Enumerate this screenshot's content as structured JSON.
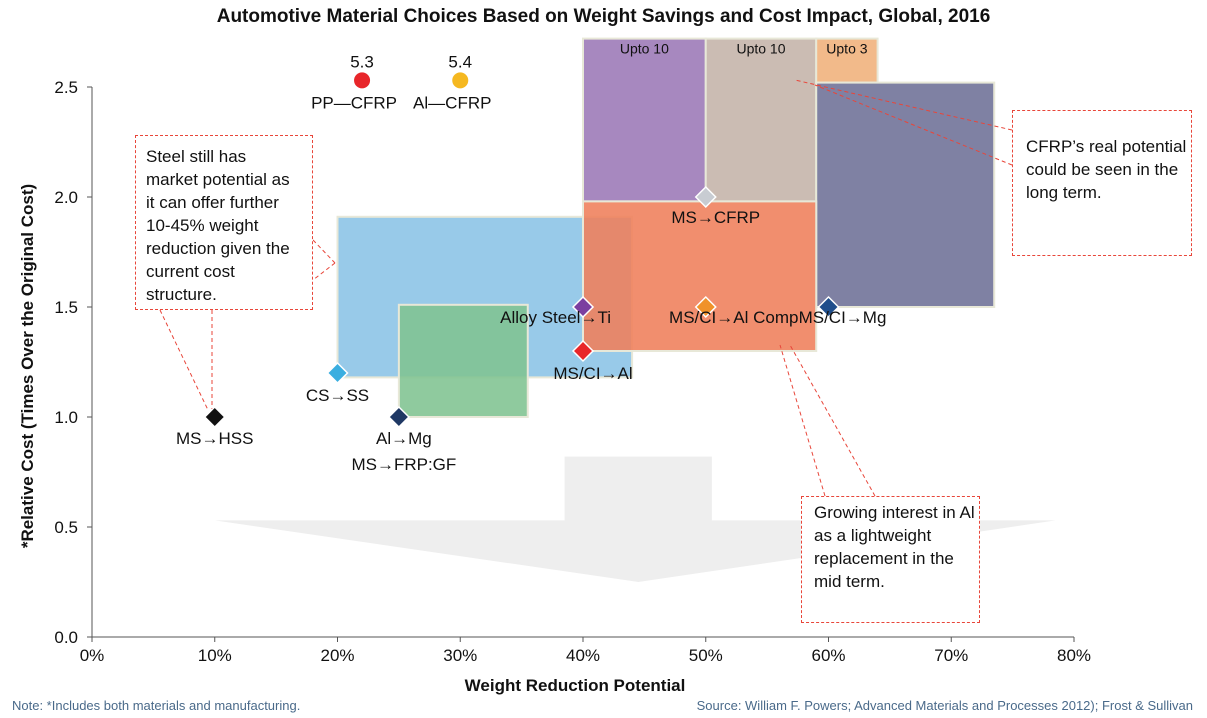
{
  "chart_data": {
    "type": "scatter",
    "title": "Automotive Material Choices Based on Weight Savings and Cost Impact, Global, 2016",
    "xlabel": "Weight Reduction Potential",
    "ylabel": "*Relative Cost (Times Over the Original Cost)",
    "xlim": [
      0,
      80
    ],
    "ylim": [
      0,
      2.5
    ],
    "x_ticks": [
      "0%",
      "10%",
      "20%",
      "30%",
      "40%",
      "50%",
      "60%",
      "70%",
      "80%"
    ],
    "y_ticks": [
      "0.0",
      "0.5",
      "1.0",
      "1.5",
      "2.0",
      "2.5"
    ],
    "grid": false,
    "points": [
      {
        "label": "MS→HSS",
        "x": 10,
        "y": 1.0,
        "color": "#111111"
      },
      {
        "label": "CS→SS",
        "x": 20,
        "y": 1.2,
        "color": "#3aaee0"
      },
      {
        "label": "Al→Mg",
        "x": 25,
        "y": 1.0,
        "color": "#1f3864"
      },
      {
        "label": "MS→FRP:GF",
        "x": 25,
        "y": 1.0,
        "color": "#1f3864"
      },
      {
        "label": "Alloy Steel→Ti",
        "x": 40,
        "y": 1.5,
        "color": "#7b3fa0"
      },
      {
        "label": "MS/CI→Al",
        "x": 40,
        "y": 1.3,
        "color": "#e8262a"
      },
      {
        "label": "MS→CFRP",
        "x": 50,
        "y": 2.0,
        "color": "#c8ccd2"
      },
      {
        "label": "MS/CI→Al Comp",
        "x": 50,
        "y": 1.5,
        "color": "#f0922a"
      },
      {
        "label": "MS/CI→Mg",
        "x": 60,
        "y": 1.5,
        "color": "#1f4e8c"
      }
    ],
    "offscale_points": [
      {
        "label": "PP—CFRP",
        "value": "5.3",
        "x": 22,
        "color": "#e8262a"
      },
      {
        "label": "Al—CFRP",
        "value": "5.4",
        "x": 30,
        "color": "#f5b820"
      }
    ],
    "ranges": [
      {
        "x0": 20,
        "x1": 44,
        "y0": 1.18,
        "y1": 1.91,
        "color": "#8ac3e6"
      },
      {
        "x0": 25,
        "x1": 35.5,
        "y0": 1.0,
        "y1": 1.51,
        "color": "#7fc391"
      },
      {
        "x0": 40,
        "x1": 50,
        "y0": 1.98,
        "y1": 2.72,
        "color": "#9b78b6",
        "label": "Upto 10"
      },
      {
        "x0": 50,
        "x1": 59,
        "y0": 1.98,
        "y1": 2.72,
        "color": "#c4b3a8",
        "label": "Upto 10"
      },
      {
        "x0": 59,
        "x1": 64,
        "y0": 2.52,
        "y1": 2.72,
        "color": "#f0b07a",
        "label": "Upto 3"
      },
      {
        "x0": 59,
        "x1": 73.5,
        "y0": 1.5,
        "y1": 2.52,
        "color": "#6d7096"
      },
      {
        "x0": 40,
        "x1": 59,
        "y0": 1.3,
        "y1": 1.98,
        "color": "#ef7e5a"
      }
    ]
  },
  "callouts": {
    "steel": "Steel still has market potential as it can offer further 10-45% weight reduction given the current cost structure.",
    "cfrp": "CFRP’s real potential could be seen in the long term.",
    "al": "Growing interest in Al as a lightweight replacement in the mid term."
  },
  "footer": {
    "note": "Note: *Includes both materials and manufacturing.",
    "source": "Source: William F. Powers; Advanced Materials and Processes 2012); Frost & Sullivan"
  },
  "colors": {
    "callout_border": "#e8463a",
    "axis": "#555555",
    "arrow": "#eeeeee"
  }
}
